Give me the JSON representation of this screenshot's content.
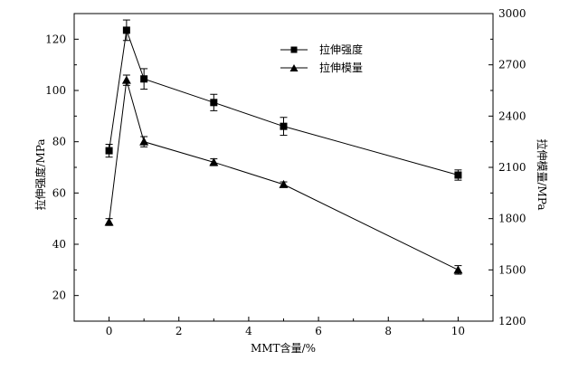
{
  "chart_data": {
    "type": "line",
    "xlabel": "MMT含量/%",
    "ylabel_left": "拉伸强度/MPa",
    "ylabel_right": "拉伸模量/MPa",
    "xlim": [
      -1,
      11
    ],
    "ylim_left": [
      10,
      130
    ],
    "ylim_right": [
      1200,
      3000
    ],
    "xticks": [
      0,
      2,
      4,
      6,
      8,
      10
    ],
    "yticks_left": [
      20,
      40,
      60,
      80,
      100,
      120
    ],
    "yticks_right": [
      1200,
      1500,
      1800,
      2100,
      2400,
      2700,
      3000
    ],
    "grid": false,
    "legend_position": "top-right",
    "series": [
      {
        "name": "拉伸强度",
        "axis": "left",
        "marker": "square",
        "x": [
          0,
          0.5,
          1,
          3,
          5,
          10
        ],
        "y": [
          76.5,
          123.5,
          104.5,
          95.3,
          86.0,
          67.0
        ],
        "err": [
          2.5,
          4.0,
          4.0,
          3.2,
          3.5,
          2.0
        ]
      },
      {
        "name": "拉伸模量",
        "axis": "right",
        "marker": "triangle",
        "x": [
          0,
          0.5,
          1,
          3,
          5,
          10
        ],
        "y": [
          1780,
          2610,
          2250,
          2130,
          2000,
          1500
        ],
        "err": [
          20,
          30,
          30,
          20,
          15,
          25
        ]
      }
    ]
  }
}
